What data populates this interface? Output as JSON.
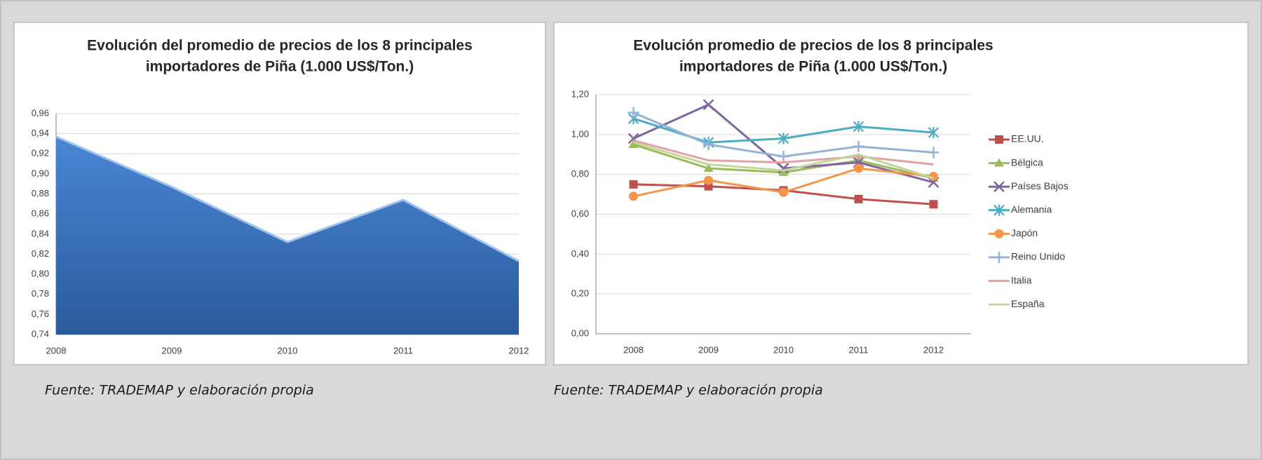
{
  "chart_data": [
    {
      "type": "area",
      "title": [
        "Evolución del promedio de precios de los 8 principales",
        "importadores de Piña (1.000 US$/Ton.)"
      ],
      "categories": [
        "2008",
        "2009",
        "2010",
        "2011",
        "2012"
      ],
      "values": [
        0.937,
        0.887,
        0.832,
        0.874,
        0.813
      ],
      "color": "#3a73c0",
      "ylim": [
        0.74,
        0.96
      ],
      "yticks": [
        {
          "value": 0.74,
          "label": "0,74"
        },
        {
          "value": 0.76,
          "label": "0,76"
        },
        {
          "value": 0.78,
          "label": "0,78"
        },
        {
          "value": 0.8,
          "label": "0,80"
        },
        {
          "value": 0.82,
          "label": "0,82"
        },
        {
          "value": 0.84,
          "label": "0,84"
        },
        {
          "value": 0.86,
          "label": "0,86"
        },
        {
          "value": 0.88,
          "label": "0,88"
        },
        {
          "value": 0.9,
          "label": "0,90"
        },
        {
          "value": 0.92,
          "label": "0,92"
        },
        {
          "value": 0.94,
          "label": "0,94"
        },
        {
          "value": 0.96,
          "label": "0,96"
        }
      ],
      "grid": true,
      "source": "Fuente: TRADEMAP y elaboración propia"
    },
    {
      "type": "line",
      "title": [
        "Evolución promedio de precios de los 8 principales",
        "importadores de Piña (1.000 US$/Ton.)"
      ],
      "categories": [
        "2008",
        "2009",
        "2010",
        "2011",
        "2012"
      ],
      "series": [
        {
          "name": "EE.UU.",
          "color": "#c0504d",
          "marker": "square",
          "values": [
            0.75,
            0.74,
            0.72,
            0.676,
            0.65
          ]
        },
        {
          "name": "Bélgica",
          "color": "#9bbb59",
          "marker": "triangle",
          "values": [
            0.95,
            0.83,
            0.81,
            0.87,
            0.78
          ]
        },
        {
          "name": "Países Bajos",
          "color": "#8064a2",
          "marker": "x",
          "values": [
            0.98,
            1.15,
            0.83,
            0.86,
            0.76
          ]
        },
        {
          "name": "Alemania",
          "color": "#4bacc6",
          "marker": "star",
          "values": [
            1.08,
            0.96,
            0.98,
            1.04,
            1.01
          ]
        },
        {
          "name": "Japón",
          "color": "#f79646",
          "marker": "circle",
          "values": [
            0.69,
            0.77,
            0.71,
            0.83,
            0.79
          ]
        },
        {
          "name": "Reino Unido",
          "color": "#95b3d7",
          "marker": "plus",
          "values": [
            1.11,
            0.95,
            0.89,
            0.94,
            0.91
          ]
        },
        {
          "name": "Italia",
          "color": "#e6a09f",
          "marker": "none",
          "values": [
            0.97,
            0.87,
            0.86,
            0.89,
            0.85
          ]
        },
        {
          "name": "España",
          "color": "#c3d69b",
          "marker": "none",
          "values": [
            0.96,
            0.85,
            0.82,
            0.9,
            0.78
          ]
        }
      ],
      "ylim": [
        0,
        1.2
      ],
      "yticks": [
        {
          "value": 0,
          "label": "0,00"
        },
        {
          "value": 0.2,
          "label": "0,20"
        },
        {
          "value": 0.4,
          "label": "0,40"
        },
        {
          "value": 0.6,
          "label": "0,60"
        },
        {
          "value": 0.8,
          "label": "0,80"
        },
        {
          "value": 1,
          "label": "1,00"
        },
        {
          "value": 1.2,
          "label": "1,20"
        }
      ],
      "grid": true,
      "legend": "right",
      "source": "Fuente: TRADEMAP y elaboración propia"
    }
  ]
}
